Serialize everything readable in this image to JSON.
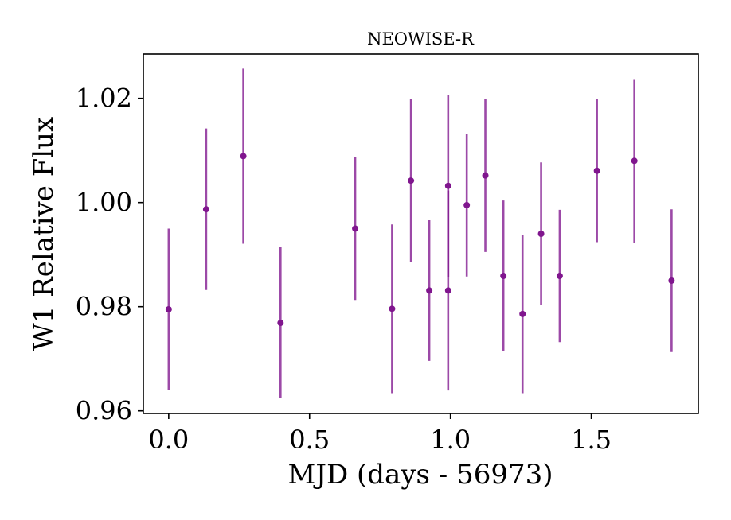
{
  "chart_data": {
    "type": "scatter",
    "title": "NEOWISE-R",
    "xlabel": "MJD (days - 56973)",
    "ylabel": "W1 Relative Flux",
    "xlim": [
      -0.09,
      1.88
    ],
    "ylim": [
      0.9595,
      1.0285
    ],
    "xticks": [
      0.0,
      0.5,
      1.0,
      1.5
    ],
    "xtick_labels": [
      "0.0",
      "0.5",
      "1.0",
      "1.5"
    ],
    "yticks": [
      0.96,
      0.98,
      1.0,
      1.02
    ],
    "ytick_labels": [
      "0.96",
      "0.98",
      "1.00",
      "1.02"
    ],
    "grid": false,
    "color": "#80168e",
    "series": [
      {
        "points": [
          {
            "x": 0.0,
            "y": 0.9795,
            "err": 0.0155
          },
          {
            "x": 0.133,
            "y": 0.9987,
            "err": 0.0155
          },
          {
            "x": 0.265,
            "y": 1.0089,
            "err": 0.0168
          },
          {
            "x": 0.397,
            "y": 0.9769,
            "err": 0.0145
          },
          {
            "x": 0.662,
            "y": 0.995,
            "err": 0.0137
          },
          {
            "x": 0.793,
            "y": 0.9796,
            "err": 0.0162
          },
          {
            "x": 0.86,
            "y": 1.0042,
            "err": 0.0157
          },
          {
            "x": 0.925,
            "y": 0.9831,
            "err": 0.0135
          },
          {
            "x": 0.992,
            "y": 1.0032,
            "err": 0.0175
          },
          {
            "x": 0.992,
            "y": 0.9831,
            "err": 0.0192
          },
          {
            "x": 1.058,
            "y": 0.9995,
            "err": 0.0137
          },
          {
            "x": 1.124,
            "y": 1.0052,
            "err": 0.0147
          },
          {
            "x": 1.188,
            "y": 0.9859,
            "err": 0.0145
          },
          {
            "x": 1.256,
            "y": 0.9786,
            "err": 0.0152
          },
          {
            "x": 1.322,
            "y": 0.994,
            "err": 0.0137
          },
          {
            "x": 1.388,
            "y": 0.9859,
            "err": 0.0127
          },
          {
            "x": 1.52,
            "y": 1.0061,
            "err": 0.0137
          },
          {
            "x": 1.653,
            "y": 1.008,
            "err": 0.0157
          },
          {
            "x": 1.785,
            "y": 0.985,
            "err": 0.0137
          }
        ]
      }
    ]
  }
}
